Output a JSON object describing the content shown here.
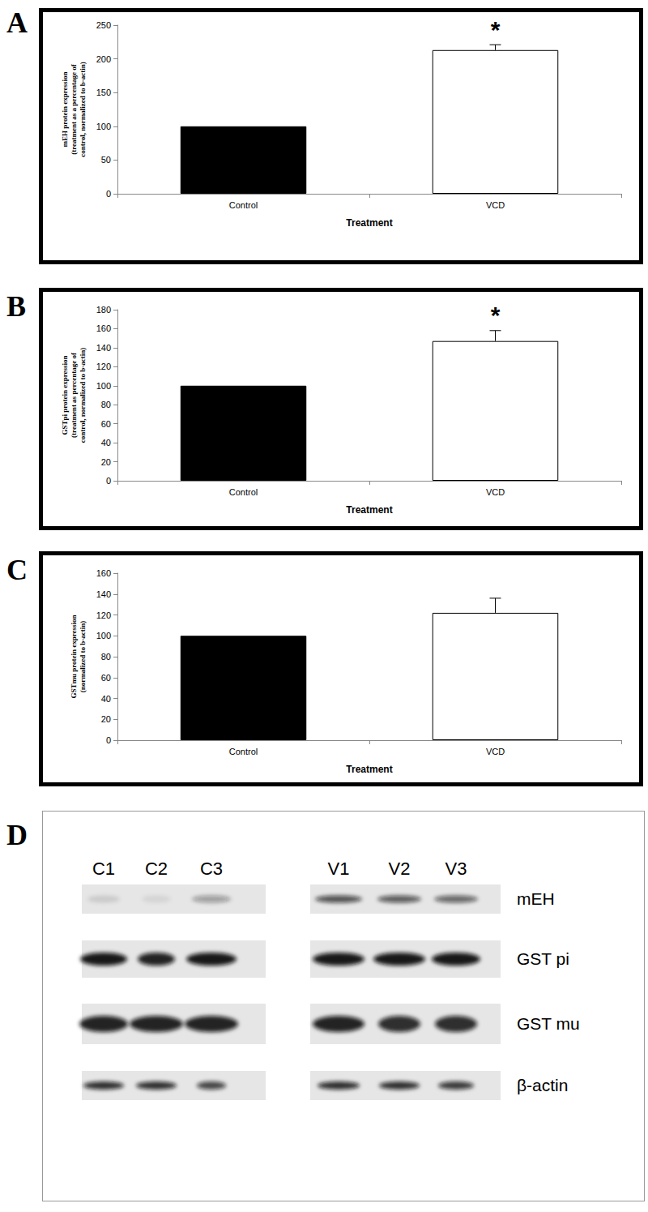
{
  "chart_data": [
    {
      "type": "bar",
      "title": "A",
      "categories": [
        "Control",
        "VCD"
      ],
      "values": [
        100,
        213
      ],
      "errors": [
        null,
        8
      ],
      "colors": [
        "#000000",
        "#ffffff"
      ],
      "xlabel": "Treatment",
      "ylabel": "mEH protein expression\n(treatment as a percentage of\ncontrol, normalized to b-actin)",
      "ylim": [
        0,
        250
      ],
      "yticks": [
        0,
        50,
        100,
        150,
        200,
        250
      ],
      "grid": false,
      "annotations": [
        {
          "category": "VCD",
          "text": "*"
        }
      ]
    },
    {
      "type": "bar",
      "title": "B",
      "categories": [
        "Control",
        "VCD"
      ],
      "values": [
        100,
        147
      ],
      "errors": [
        null,
        11
      ],
      "colors": [
        "#000000",
        "#ffffff"
      ],
      "xlabel": "Treatment",
      "ylabel": "GSTpi protein expression\n(treatment as percentage of\ncontrol, normalized to b-actin)",
      "ylim": [
        0,
        180
      ],
      "yticks": [
        0,
        20,
        40,
        60,
        80,
        100,
        120,
        140,
        160,
        180
      ],
      "grid": false,
      "annotations": [
        {
          "category": "VCD",
          "text": "*"
        }
      ]
    },
    {
      "type": "bar",
      "title": "C",
      "categories": [
        "Control",
        "VCD"
      ],
      "values": [
        100,
        122
      ],
      "errors": [
        null,
        14
      ],
      "colors": [
        "#000000",
        "#ffffff"
      ],
      "xlabel": "Treatment",
      "ylabel": "GSTmu protein expression\n(normalized to b-actin)",
      "ylim": [
        0,
        160
      ],
      "yticks": [
        0,
        20,
        40,
        60,
        80,
        100,
        120,
        140,
        160
      ],
      "grid": false,
      "annotations": []
    }
  ],
  "blot": {
    "title": "D",
    "lanes": [
      "C1",
      "C2",
      "C3",
      "V1",
      "V2",
      "V3"
    ],
    "rows": [
      "mEH",
      "GST pi",
      "GST mu",
      "β-actin"
    ]
  }
}
